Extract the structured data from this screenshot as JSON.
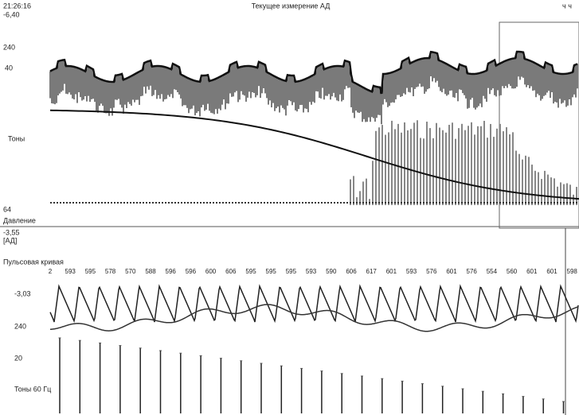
{
  "header": {
    "time": "21:26:16",
    "title": "Текущее измерение АД",
    "corner": "ч ч"
  },
  "top_panel": {
    "scale_top": "-6,40",
    "pressure_max": "240",
    "level": "40",
    "tones_label": "Тоны",
    "scale_bottom": "64",
    "pressure_label": "Давление"
  },
  "bottom_panel": {
    "scale_top": "-3,55",
    "unit": "[АД]",
    "pulse_label": "Пульсовая кривая",
    "beat_intervals": [
      "2",
      "593",
      "595",
      "578",
      "570",
      "588",
      "596",
      "596",
      "600",
      "606",
      "595",
      "595",
      "595",
      "593",
      "590",
      "606",
      "617",
      "601",
      "593",
      "576",
      "601",
      "576",
      "554",
      "560",
      "601",
      "601",
      "598"
    ],
    "curve_top": "-3,03",
    "pressure_max": "240",
    "level": "20",
    "tones_label": "Тоны 60 Гц"
  }
}
